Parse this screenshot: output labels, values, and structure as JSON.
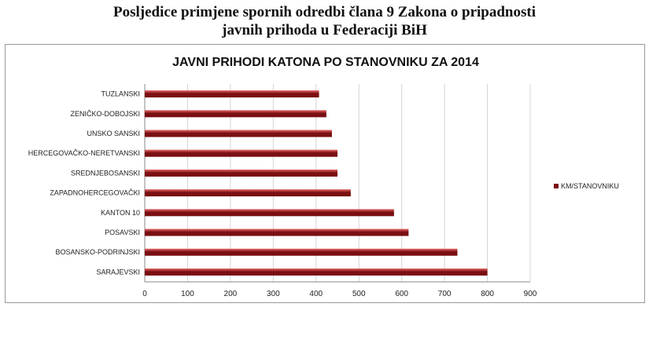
{
  "page_heading": {
    "line1": "Posljedice primjene spornih odredbi člana 9 Zakona o pripadnosti",
    "line2": "javnih prihoda u Federaciji BiH"
  },
  "colors": {
    "bar_dark": "#7a0f12",
    "bar_light": "#e86a6a",
    "grid": "#d4d4d4",
    "axis": "#8a8a8a"
  },
  "chart_data": {
    "type": "bar",
    "orientation": "horizontal",
    "title": "JAVNI PRIHODI KATONA PO STANOVNIKU ZA 2014",
    "categories": [
      "TUZLANSKI",
      "ZENIČKO-DOBOJSKI",
      "UNSKO SANSKI",
      "HERCEGOVAČKO-NERETVANSKI",
      "SREDNJEBOSANSKI",
      "ZAPADNOHERCEGOVAČKI",
      "KANTON 10",
      "POSAVSKI",
      "BOSANSKO-PODRINJSKI",
      "SARAJEVSKI"
    ],
    "series": [
      {
        "name": "KM/STANOVNIKU",
        "values": [
          407,
          424,
          437,
          450,
          450,
          481,
          582,
          616,
          730,
          800
        ]
      }
    ],
    "xlim": [
      0,
      900
    ],
    "xticks": [
      "0",
      "100",
      "200",
      "300",
      "400",
      "500",
      "600",
      "700",
      "800",
      "900"
    ],
    "grid": "vertical",
    "legend_position": "right"
  }
}
